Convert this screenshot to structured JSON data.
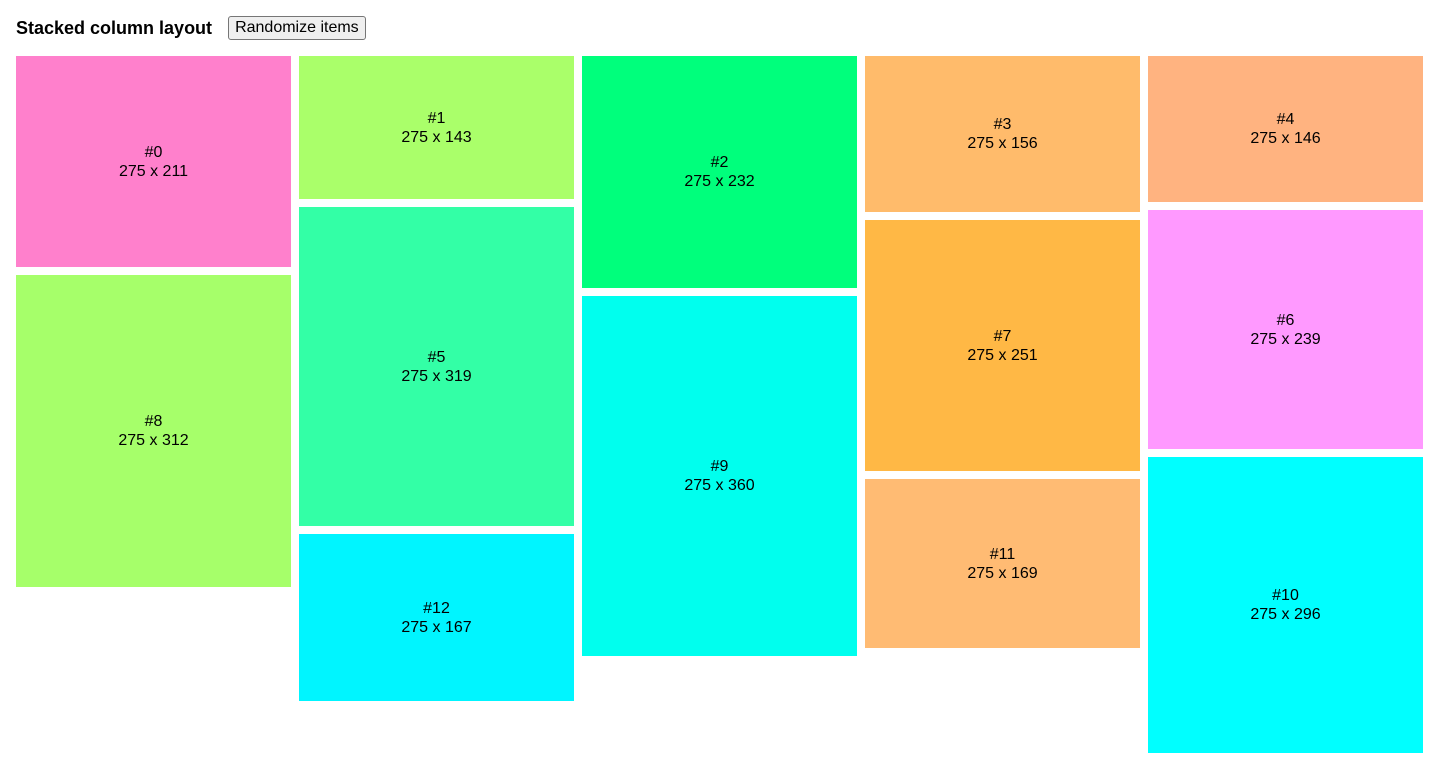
{
  "header": {
    "title": "Stacked column layout",
    "randomize_label": "Randomize items"
  },
  "columns": [
    [
      {
        "label": "#0",
        "dims": "275 x 211",
        "height": 211,
        "color": "#ff80cc"
      },
      {
        "label": "#8",
        "dims": "275 x 312",
        "height": 312,
        "color": "#a6ff6a"
      }
    ],
    [
      {
        "label": "#1",
        "dims": "275 x 143",
        "height": 143,
        "color": "#aaff6a"
      },
      {
        "label": "#5",
        "dims": "275 x 319",
        "height": 319,
        "color": "#33ffa6"
      },
      {
        "label": "#12",
        "dims": "275 x 167",
        "height": 167,
        "color": "#00f5ff"
      }
    ],
    [
      {
        "label": "#2",
        "dims": "275 x 232",
        "height": 232,
        "color": "#00ff7c"
      },
      {
        "label": "#9",
        "dims": "275 x 360",
        "height": 360,
        "color": "#00ffee"
      }
    ],
    [
      {
        "label": "#3",
        "dims": "275 x 156",
        "height": 156,
        "color": "#ffbb6b"
      },
      {
        "label": "#7",
        "dims": "275 x 251",
        "height": 251,
        "color": "#ffb845"
      },
      {
        "label": "#11",
        "dims": "275 x 169",
        "height": 169,
        "color": "#ffbb73"
      }
    ],
    [
      {
        "label": "#4",
        "dims": "275 x 146",
        "height": 146,
        "color": "#ffb380"
      },
      {
        "label": "#6",
        "dims": "275 x 239",
        "height": 239,
        "color": "#ff99ff"
      },
      {
        "label": "#10",
        "dims": "275 x 296",
        "height": 296,
        "color": "#00ffff"
      }
    ]
  ]
}
